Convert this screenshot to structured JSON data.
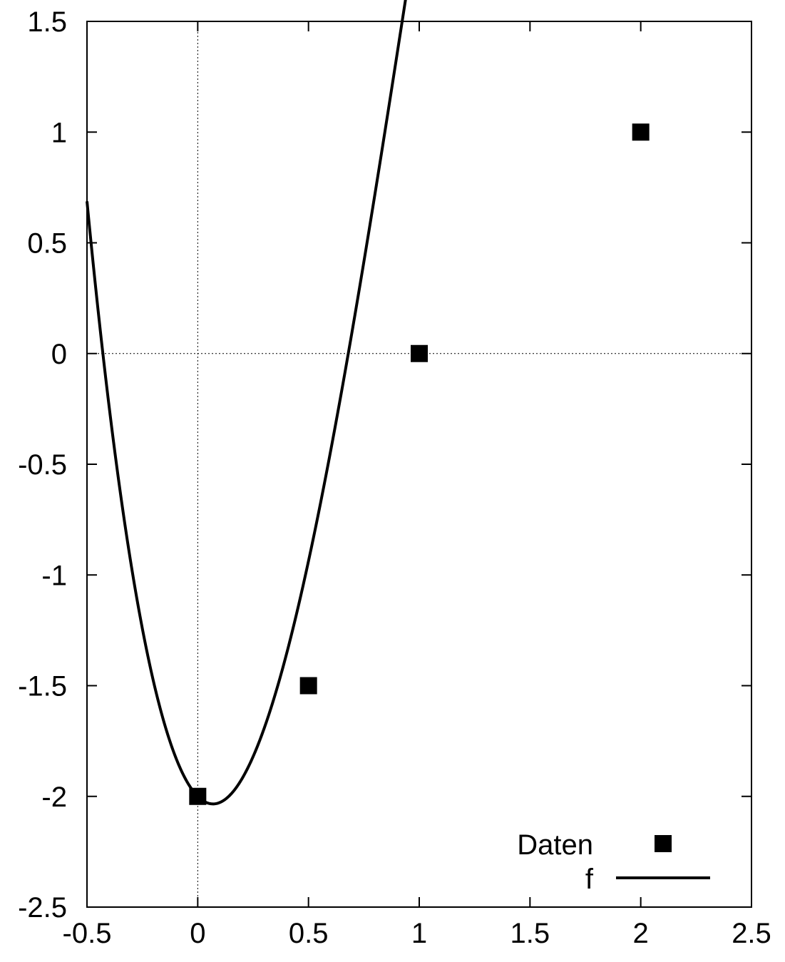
{
  "chart_data": {
    "type": "scatter",
    "title": "",
    "xlabel": "",
    "ylabel": "",
    "xlim": [
      -0.5,
      2.5
    ],
    "ylim": [
      -2.5,
      1.5
    ],
    "xticks": [
      "-0.5",
      "0",
      "0.5",
      "1",
      "1.5",
      "2",
      "2.5"
    ],
    "yticks": [
      "1.5",
      "1",
      "0.5",
      "0",
      "-0.5",
      "-1",
      "-1.5",
      "-2",
      "-2.5"
    ],
    "zero_axes": true,
    "grid": false,
    "legend_position": "bottom-right",
    "series": [
      {
        "name": "Daten",
        "kind": "points",
        "marker": "square",
        "x": [
          0,
          0.5,
          1,
          2
        ],
        "y": [
          -2,
          -1.5,
          0,
          1
        ]
      },
      {
        "name": "f",
        "kind": "line",
        "coefficients_ascending": [
          -2,
          -1,
          7.5,
          -2.5
        ]
      }
    ],
    "colors": {
      "line": "#000000",
      "marker": "#000000",
      "axis": "#000000"
    }
  }
}
